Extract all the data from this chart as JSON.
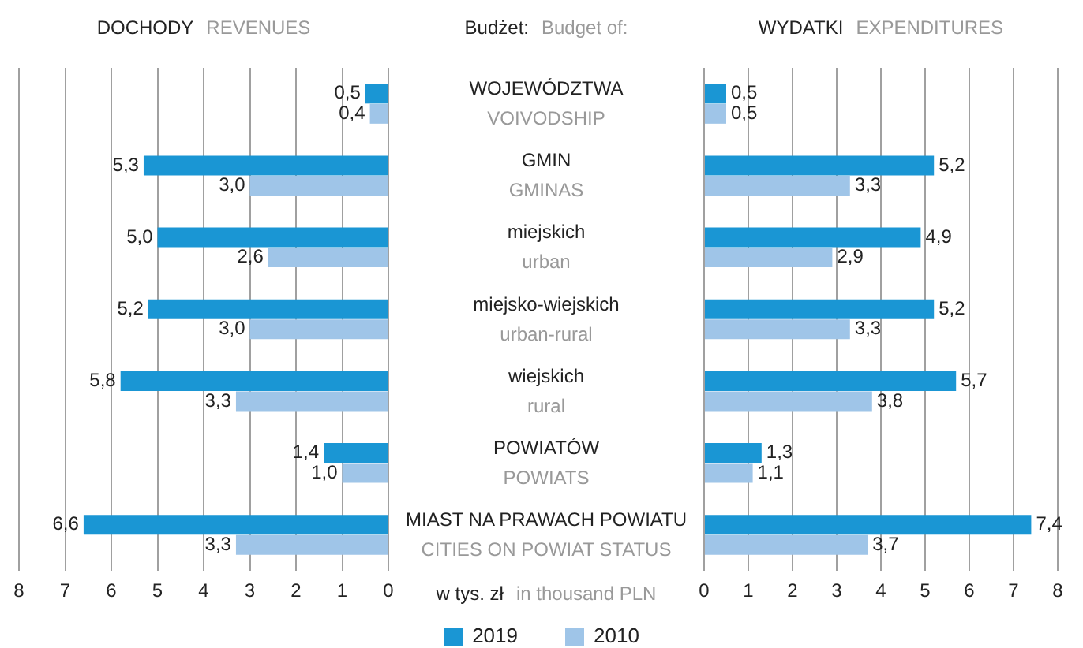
{
  "chart_data": [
    {
      "type": "bar",
      "orientation": "horizontal",
      "title": "DOCHODY",
      "subtitle": "REVENUES",
      "categories": [
        "WOJEWÓDZTWA\nVOIVODSHIP",
        "GMIN\nGMINAS",
        "miejskich\nurban",
        "miejsko-wiejskich\nurban-rural",
        "wiejskich\nrural",
        "POWIATÓW\nPOWIATS",
        "MIAST NA PRAWACH POWIATU\nCITIES ON POWIAT STATUS"
      ],
      "series": [
        {
          "name": "2019",
          "color": "#1a96d4",
          "values": [
            0.5,
            5.3,
            5.0,
            5.2,
            5.8,
            1.4,
            6.6
          ],
          "value_labels": [
            "0,5",
            "5,3",
            "5,0",
            "5,2",
            "5,8",
            "1,4",
            "6,6"
          ]
        },
        {
          "name": "2010",
          "color": "#9fc5e8",
          "values": [
            0.4,
            3.0,
            2.6,
            3.0,
            3.3,
            1.0,
            3.3
          ],
          "value_labels": [
            "0,4",
            "3,0",
            "2,6",
            "3,0",
            "3,3",
            "1,0",
            "3,3"
          ]
        }
      ],
      "annotations": [
        "Budżet:",
        "Budget of:",
        "w tys. zł",
        "in thousand PLN"
      ],
      "xlim": [
        8,
        0
      ],
      "xticks": [
        8,
        7,
        6,
        5,
        4,
        3,
        2,
        1,
        0
      ],
      "grid": "x",
      "legend": "bottom"
    },
    {
      "type": "bar",
      "orientation": "horizontal",
      "title": "WYDATKI",
      "subtitle": "EXPENDITURES",
      "categories": [
        null,
        null,
        null,
        null,
        null,
        null,
        null
      ],
      "series": [
        {
          "color": "#1a96d4",
          "values": [
            0.5,
            5.2,
            4.9,
            5.2,
            5.7,
            1.3,
            7.4
          ],
          "value_labels": [
            "0,5",
            "5,2",
            "4,9",
            "5,2",
            "5,7",
            "1,3",
            "7,4"
          ]
        },
        {
          "color": "#9fc5e8",
          "values": [
            0.5,
            3.3,
            2.9,
            3.3,
            3.8,
            1.1,
            3.7
          ],
          "value_labels": [
            "0,5",
            "3,3",
            "2,9",
            "3,3",
            "3,8",
            "1,1",
            "3,7"
          ]
        }
      ],
      "xlim": [
        0,
        8
      ],
      "xticks": [
        0,
        1,
        2,
        3,
        4,
        5,
        6,
        7,
        8
      ],
      "grid": "x",
      "tick_labels": "x"
    }
  ]
}
